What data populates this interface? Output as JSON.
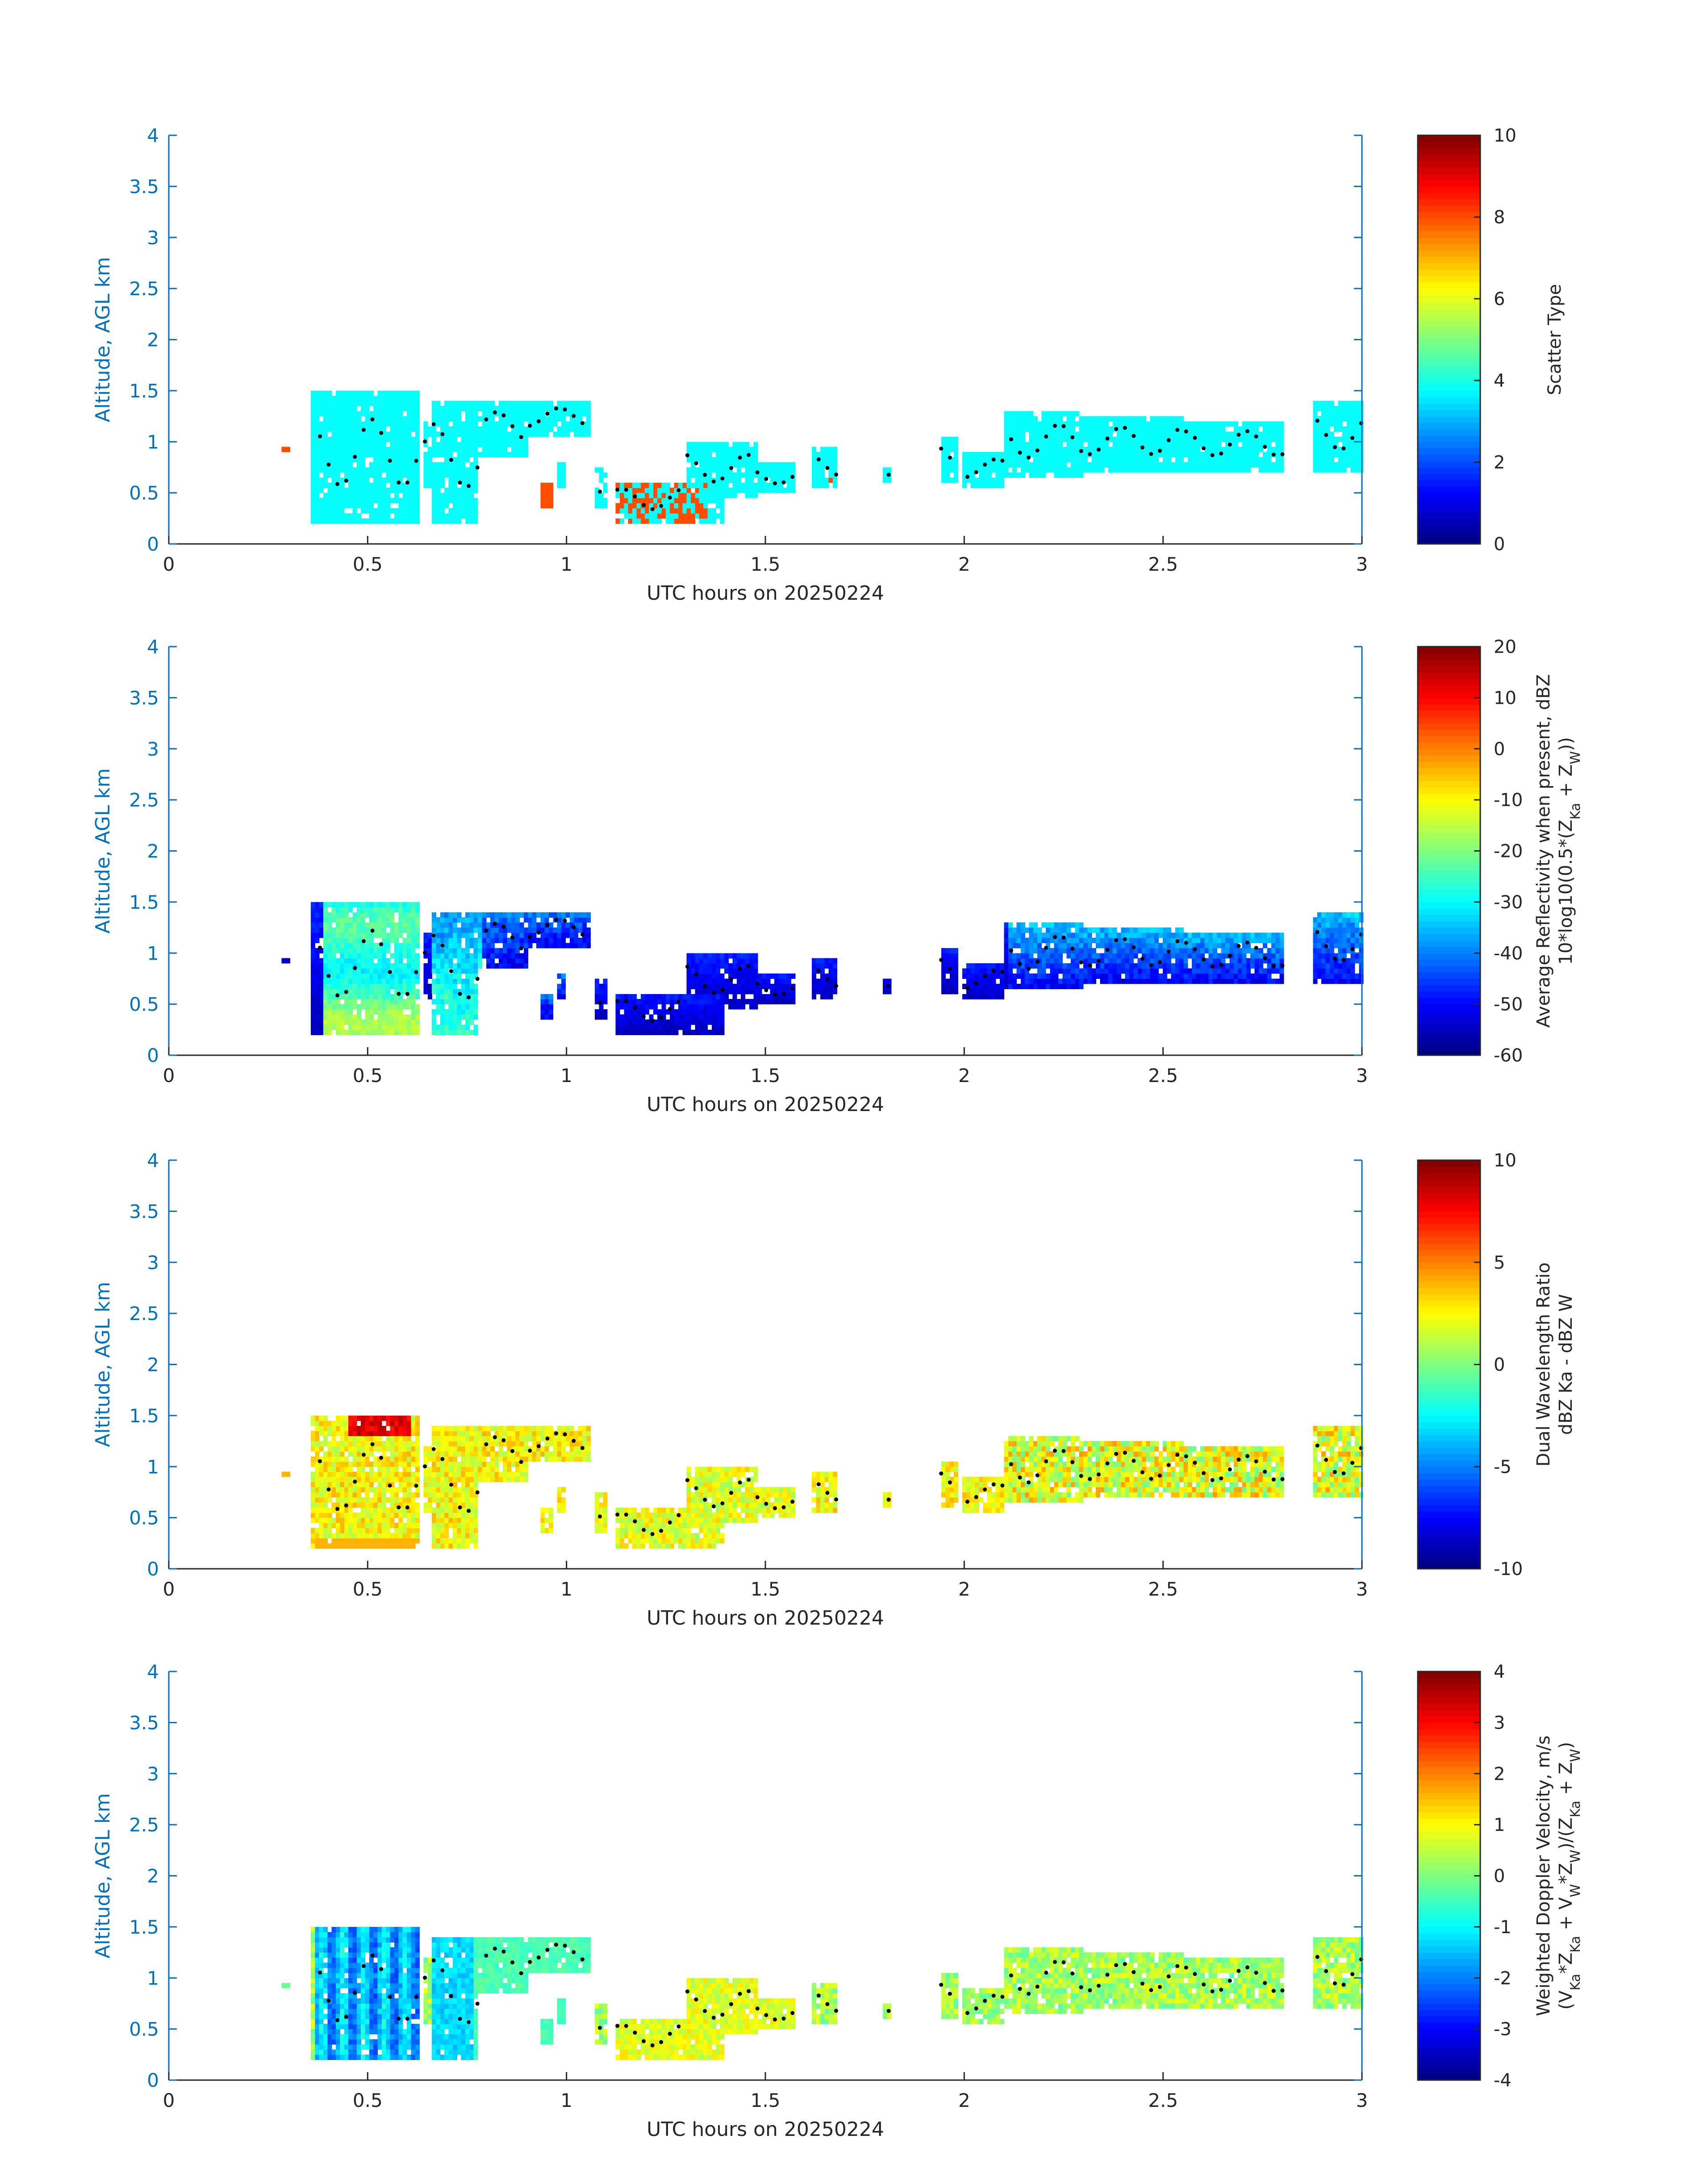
{
  "chart_data": [
    {
      "type": "heatmap",
      "xlabel": "UTC hours on 20250224",
      "ylabel": "Altitude, AGL km",
      "xlim": [
        0,
        3
      ],
      "ylim": [
        0,
        4
      ],
      "xticks": [
        "0",
        "0.5",
        "1",
        "1.5",
        "2",
        "2.5",
        "3"
      ],
      "yticks": [
        "0",
        "0.5",
        "1",
        "1.5",
        "2",
        "2.5",
        "3",
        "3.5",
        "4"
      ],
      "colorbar": {
        "title_lines": [
          "Scatter Type"
        ],
        "min": 0,
        "max": 10,
        "ticks": [
          "0",
          "2",
          "4",
          "6",
          "8",
          "10"
        ]
      },
      "colormap": "jet",
      "cloud_top_dots": true
    },
    {
      "type": "heatmap",
      "xlabel": "UTC hours on 20250224",
      "ylabel": "Altitude, AGL km",
      "xlim": [
        0,
        3
      ],
      "ylim": [
        0,
        4
      ],
      "xticks": [
        "0",
        "0.5",
        "1",
        "1.5",
        "2",
        "2.5",
        "3"
      ],
      "yticks": [
        "0",
        "0.5",
        "1",
        "1.5",
        "2",
        "2.5",
        "3",
        "3.5",
        "4"
      ],
      "colorbar": {
        "title_lines": [
          "Average Reflectivity when present, dBZ",
          "10*log10(0.5*(Z_Ka + Z_W))"
        ],
        "min": -60,
        "max": 20,
        "ticks": [
          "-60",
          "-50",
          "-40",
          "-30",
          "-20",
          "-10",
          "0",
          "10",
          "20"
        ]
      },
      "colormap": "jet",
      "cloud_top_dots": true
    },
    {
      "type": "heatmap",
      "xlabel": "UTC hours on 20250224",
      "ylabel": "Altitude, AGL km",
      "xlim": [
        0,
        3
      ],
      "ylim": [
        0,
        4
      ],
      "xticks": [
        "0",
        "0.5",
        "1",
        "1.5",
        "2",
        "2.5",
        "3"
      ],
      "yticks": [
        "0",
        "0.5",
        "1",
        "1.5",
        "2",
        "2.5",
        "3",
        "3.5",
        "4"
      ],
      "colorbar": {
        "title_lines": [
          "Dual Wavelength Ratio",
          "dBZ Ka - dBZ W"
        ],
        "min": -10,
        "max": 10,
        "ticks": [
          "-10",
          "-5",
          "0",
          "5",
          "10"
        ]
      },
      "colormap": "jet",
      "cloud_top_dots": true
    },
    {
      "type": "heatmap",
      "xlabel": "UTC hours on 20250224",
      "ylabel": "Altitude, AGL km",
      "xlim": [
        0,
        3
      ],
      "ylim": [
        0,
        4
      ],
      "xticks": [
        "0",
        "0.5",
        "1",
        "1.5",
        "2",
        "2.5",
        "3"
      ],
      "yticks": [
        "0",
        "0.5",
        "1",
        "1.5",
        "2",
        "2.5",
        "3",
        "3.5",
        "4"
      ],
      "colorbar": {
        "title_lines": [
          "Weighted Doppler Velocity, m/s",
          "(V_Ka*Z_Ka + V_W*Z_W)/(Z_Ka + Z_W)"
        ],
        "min": -4,
        "max": 4,
        "ticks": [
          "-4",
          "-3",
          "-2",
          "-1",
          "0",
          "1",
          "2",
          "3",
          "4"
        ]
      },
      "colormap": "jet",
      "cloud_top_dots": true
    }
  ]
}
